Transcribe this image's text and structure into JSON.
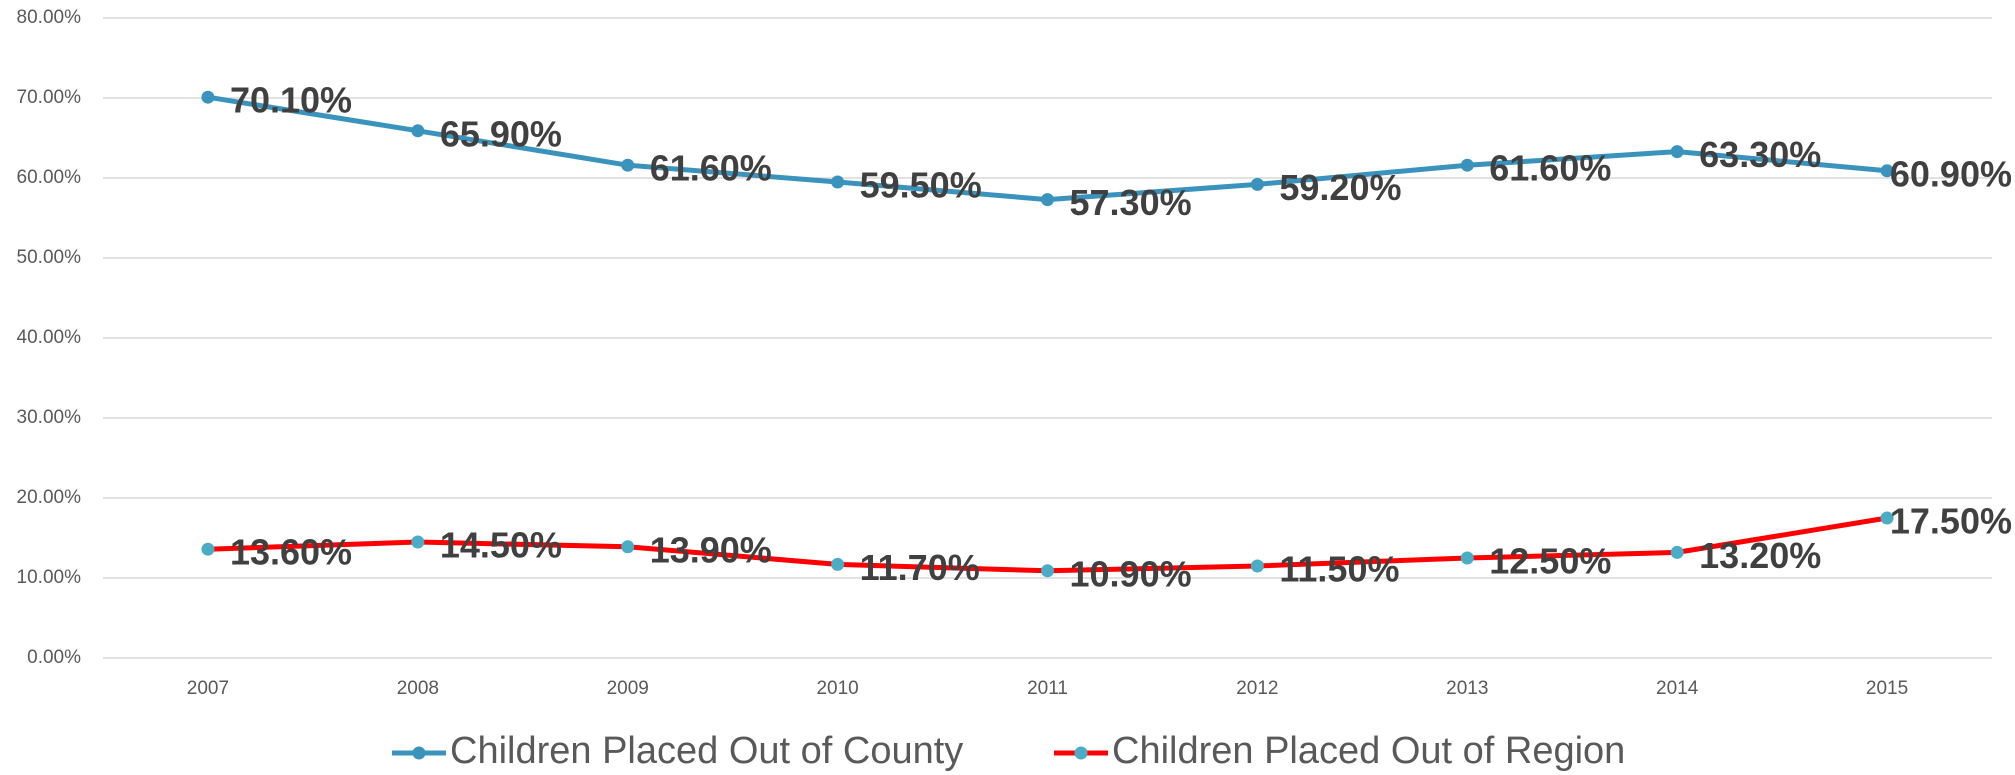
{
  "chart_data": {
    "type": "line",
    "categories": [
      "2007",
      "2008",
      "2009",
      "2010",
      "2011",
      "2012",
      "2013",
      "2014",
      "2015"
    ],
    "series": [
      {
        "name": "Children Placed Out of County",
        "color": "#3a93bd",
        "marker_color": "#3a93bd",
        "values": [
          70.1,
          65.9,
          61.6,
          59.5,
          57.3,
          59.2,
          61.6,
          63.3,
          60.9
        ],
        "value_labels": [
          "70.10%",
          "65.90%",
          "61.60%",
          "59.50%",
          "57.30%",
          "59.20%",
          "61.60%",
          "63.30%",
          "60.90%"
        ]
      },
      {
        "name": "Children Placed Out of Region",
        "color": "#ff0000",
        "marker_color": "#4bacc6",
        "values": [
          13.6,
          14.5,
          13.9,
          11.7,
          10.9,
          11.5,
          12.5,
          13.2,
          17.5
        ],
        "value_labels": [
          "13.60%",
          "14.50%",
          "13.90%",
          "11.70%",
          "10.90%",
          "11.50%",
          "12.50%",
          "13.20%",
          "17.50%"
        ]
      }
    ],
    "ylim": [
      0,
      80
    ],
    "yticks": [
      {
        "value": 0,
        "label": "0.00%"
      },
      {
        "value": 10,
        "label": "10.00%"
      },
      {
        "value": 20,
        "label": "20.00%"
      },
      {
        "value": 30,
        "label": "30.00%"
      },
      {
        "value": 40,
        "label": "40.00%"
      },
      {
        "value": 50,
        "label": "50.00%"
      },
      {
        "value": 60,
        "label": "60.00%"
      },
      {
        "value": 70,
        "label": "70.00%"
      },
      {
        "value": 80,
        "label": "80.00%"
      }
    ],
    "grid": true,
    "legend": "bottom"
  }
}
